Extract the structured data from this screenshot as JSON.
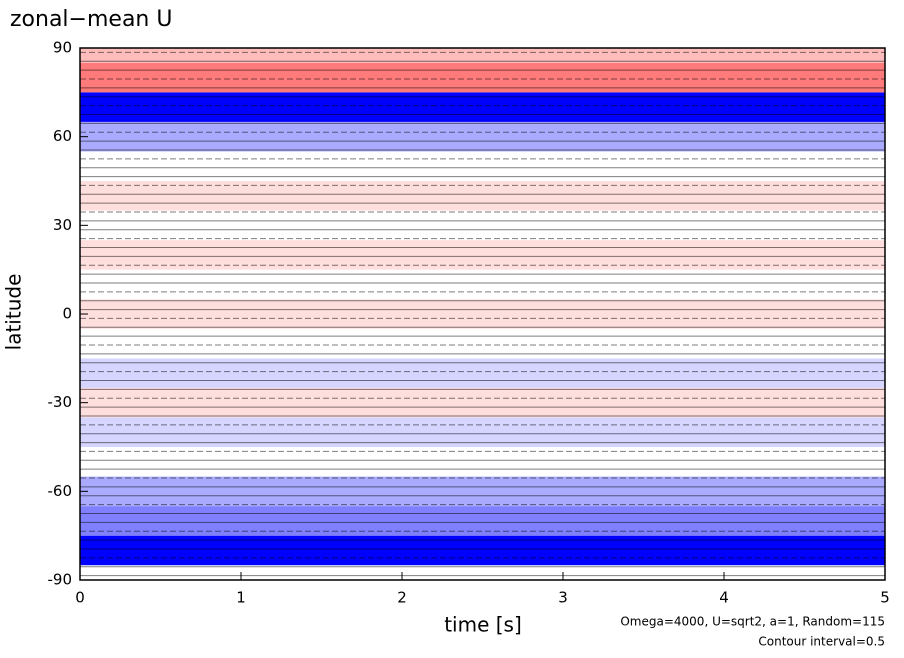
{
  "chart_data": {
    "type": "contour",
    "title": "zonal−mean U",
    "x_label": "time [s]",
    "y_label": "latitude",
    "annotations": [
      "Omega=4000, U=sqrt2, a=1, Random=115",
      "Contour interval=0.5"
    ],
    "latitudes": [
      -90,
      -80,
      -70,
      -60,
      -50,
      -40,
      -30,
      -20,
      -10,
      0,
      10,
      20,
      30,
      40,
      50,
      60,
      70,
      80,
      90
    ],
    "values": [
      0,
      -3,
      -1.5,
      -1,
      0,
      -0.5,
      0.5,
      -0.5,
      0,
      0.5,
      0,
      0.5,
      0,
      0.5,
      0,
      -1,
      -3,
      2,
      1
    ],
    "xlim": [
      0,
      5
    ],
    "xticks": [
      0,
      1,
      2,
      3,
      4,
      5
    ],
    "ylim": [
      -90,
      90
    ],
    "yticks": [
      -90,
      -60,
      -30,
      0,
      30,
      60,
      90
    ]
  }
}
